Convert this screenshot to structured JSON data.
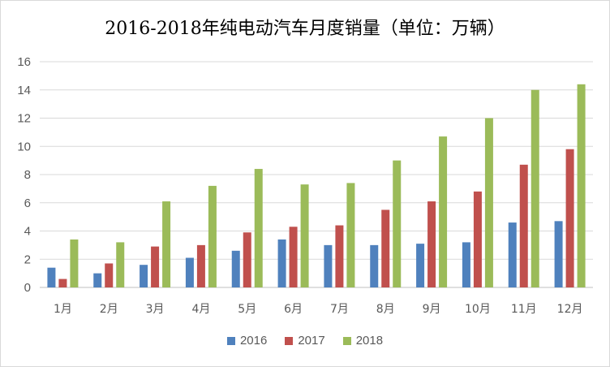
{
  "chart_data": {
    "type": "bar",
    "title": "2016-2018年纯电动汽车月度销量（单位：万辆）",
    "xlabel": "",
    "ylabel": "",
    "ylim": [
      0,
      16
    ],
    "yticks": [
      0,
      2,
      4,
      6,
      8,
      10,
      12,
      14,
      16
    ],
    "grid": true,
    "legend_position": "bottom",
    "categories": [
      "1月",
      "2月",
      "3月",
      "4月",
      "5月",
      "6月",
      "7月",
      "8月",
      "9月",
      "10月",
      "11月",
      "12月"
    ],
    "series": [
      {
        "name": "2016",
        "color": "#4f81bd",
        "values": [
          1.4,
          1.0,
          1.6,
          2.1,
          2.6,
          3.4,
          3.0,
          3.0,
          3.1,
          3.2,
          4.6,
          4.7
        ]
      },
      {
        "name": "2017",
        "color": "#c0504d",
        "values": [
          0.6,
          1.7,
          2.9,
          3.0,
          3.9,
          4.3,
          4.4,
          5.5,
          6.1,
          6.8,
          8.7,
          9.8
        ]
      },
      {
        "name": "2018",
        "color": "#9bbb59",
        "values": [
          3.4,
          3.2,
          6.1,
          7.2,
          8.4,
          7.3,
          7.4,
          9.0,
          10.7,
          12.0,
          14.0,
          14.4
        ]
      }
    ]
  }
}
